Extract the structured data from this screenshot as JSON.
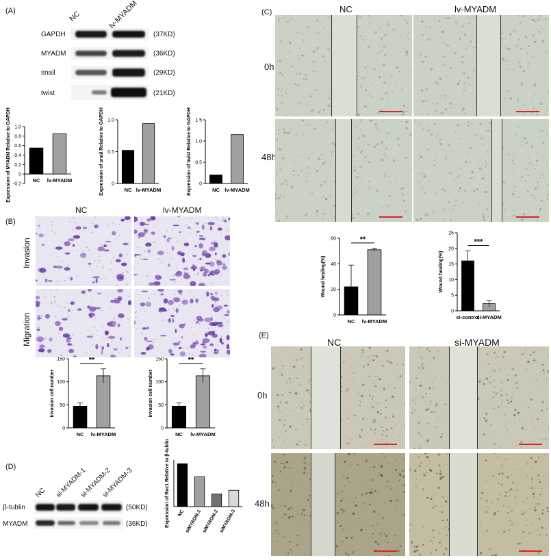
{
  "panels": {
    "A": {
      "label": "(A)",
      "lanes": [
        "NC",
        "lv-MYADM"
      ],
      "rows": [
        {
          "name": "GAPDH",
          "kd": "(37KD)"
        },
        {
          "name": "MYADM",
          "kd": "(36KD)"
        },
        {
          "name": "snail",
          "kd": "(29KD)"
        },
        {
          "name": "twist",
          "kd": "(21KD)"
        }
      ]
    },
    "B": {
      "label": "(B)",
      "col_labels": [
        "NC",
        "lv-MYADM"
      ],
      "row_labels": [
        "Invasion",
        "Migration"
      ]
    },
    "C": {
      "label": "(C)",
      "col_labels": [
        "NC",
        "lv-MYADM"
      ],
      "row_labels": [
        "0h",
        "48h"
      ]
    },
    "D": {
      "label": "(D)",
      "lanes": [
        "NC",
        "si-MYADM-1",
        "si-MYADM-2",
        "si-MYADM-3"
      ],
      "rows": [
        {
          "name": "β-tublin",
          "kd": "(50KD)"
        },
        {
          "name": "MYADM",
          "kd": "(36KD)"
        }
      ]
    },
    "E": {
      "label": "(E)",
      "col_labels": [
        "NC",
        "si-MYADM"
      ],
      "row_labels": [
        "0h",
        "48h"
      ]
    }
  },
  "chart_data": [
    {
      "id": "A1",
      "type": "bar",
      "categories": [
        "NC",
        "lv-MYADM"
      ],
      "values": [
        0.55,
        0.85
      ],
      "ylabel": "Expression of MYADM Relative to GAPDH",
      "ylim": [
        -0.2,
        1.0
      ],
      "yticks": [
        "-0.2",
        "0",
        "0.2",
        "0.4",
        "0.6",
        "0.8",
        "1.0"
      ],
      "colors": [
        "#000000",
        "#a0a0a0"
      ]
    },
    {
      "id": "A2",
      "type": "bar",
      "categories": [
        "NC",
        "lv-MYADM"
      ],
      "values": [
        0.52,
        0.94
      ],
      "ylabel": "Expression of snail Relative to GAPDH",
      "ylim": [
        0,
        1.0
      ],
      "yticks": [
        "0",
        "0.5",
        "1.0"
      ],
      "colors": [
        "#000000",
        "#a0a0a0"
      ]
    },
    {
      "id": "A3",
      "type": "bar",
      "categories": [
        "NC",
        "lv-MYADM"
      ],
      "values": [
        0.2,
        1.15
      ],
      "ylabel": "Expression of twist Relative to GAPDH",
      "ylim": [
        0,
        1.5
      ],
      "yticks": [
        "0",
        "0.5",
        "1.0",
        "1.5"
      ],
      "colors": [
        "#000000",
        "#a0a0a0"
      ]
    },
    {
      "id": "B1",
      "type": "bar",
      "categories": [
        "NC",
        "lv-MYADM"
      ],
      "values": [
        47,
        113
      ],
      "errors": [
        7,
        15
      ],
      "ylabel": "Invasion cell number",
      "ylim": [
        0,
        150
      ],
      "yticks": [
        "0",
        "50",
        "100",
        "150"
      ],
      "sig": "**",
      "colors": [
        "#000000",
        "#a0a0a0"
      ]
    },
    {
      "id": "B2",
      "type": "bar",
      "categories": [
        "NC",
        "lv-MYADM"
      ],
      "values": [
        47,
        113
      ],
      "errors": [
        7,
        15
      ],
      "ylabel": "Invasion cell number",
      "ylim": [
        0,
        150
      ],
      "yticks": [
        "0",
        "50",
        "100",
        "150"
      ],
      "sig": "**",
      "colors": [
        "#000000",
        "#a0a0a0"
      ]
    },
    {
      "id": "C1",
      "type": "bar",
      "categories": [
        "NC",
        "lv-MYADM"
      ],
      "values": [
        22,
        51
      ],
      "errors": [
        17,
        1
      ],
      "ylabel": "Wound healing(%)",
      "ylim": [
        0,
        60
      ],
      "yticks": [
        "0",
        "20",
        "40",
        "60"
      ],
      "sig": "**",
      "colors": [
        "#000000",
        "#a0a0a0"
      ]
    },
    {
      "id": "C2",
      "type": "bar",
      "categories": [
        "si-control",
        "si-MYADM"
      ],
      "values": [
        16,
        2.3
      ],
      "errors": [
        3.2,
        1
      ],
      "ylabel": "Wound healing(%)",
      "ylim": [
        0,
        25
      ],
      "yticks": [
        "0",
        "5",
        "10",
        "15",
        "20",
        "25"
      ],
      "sig": "***",
      "colors": [
        "#000000",
        "#a0a0a0"
      ]
    },
    {
      "id": "D1",
      "type": "bar",
      "categories": [
        "NC",
        "siMYADM-1",
        "siMYADM-2",
        "siMYADM-3"
      ],
      "values": [
        0.92,
        0.64,
        0.27,
        0.35
      ],
      "ylabel": "Expression of Rac1 Relative to β-tublin",
      "ylim": [
        0,
        1.0
      ],
      "yticks": [],
      "colors": [
        "#000000",
        "#a0a0a0",
        "#707070",
        "#d8d8d8"
      ]
    }
  ]
}
